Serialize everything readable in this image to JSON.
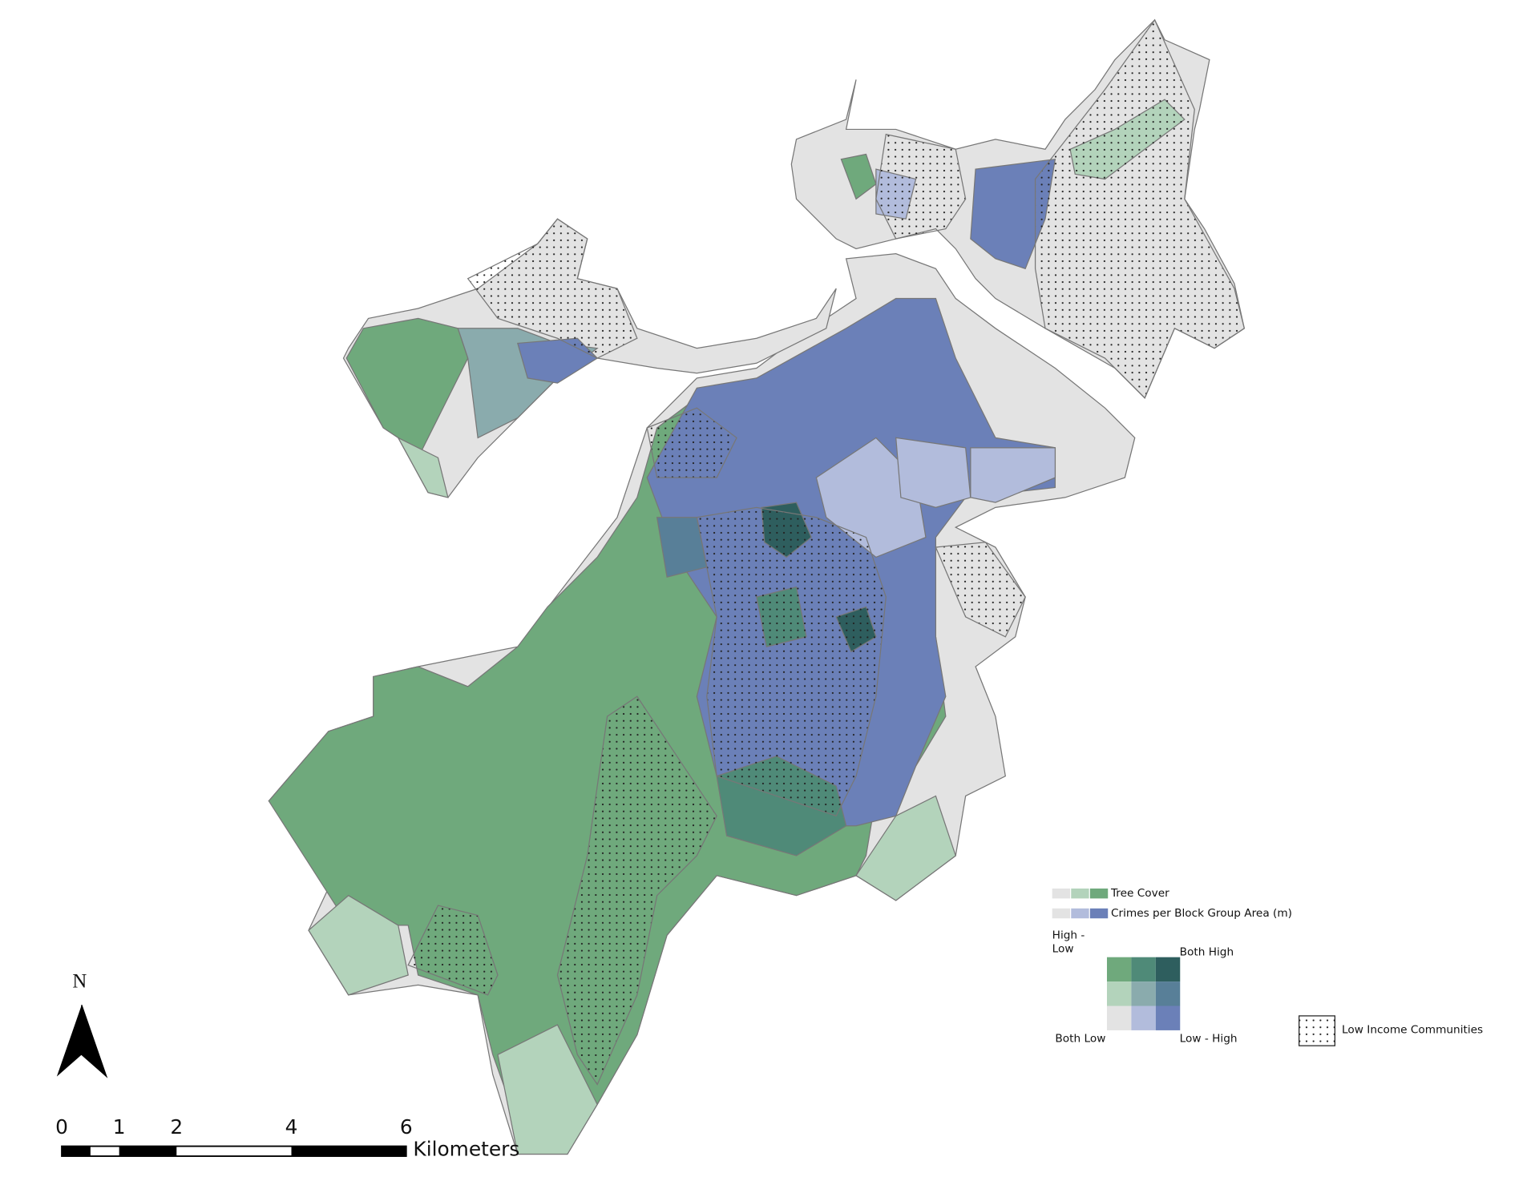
{
  "map": {
    "north_label": "N",
    "scale_bar": {
      "ticks": [
        0,
        1,
        2,
        4,
        6
      ],
      "unit": "Kilometers"
    },
    "legend": {
      "tree_cover": {
        "label": "Tree Cover",
        "colors": [
          "#e3e3e3",
          "#b3d3bb",
          "#6fa97c"
        ]
      },
      "crimes": {
        "label": "Crimes per Block Group Area (m)",
        "colors": [
          "#e3e3e3",
          "#b2bcdc",
          "#6b80b8"
        ]
      },
      "bivariate_colors": [
        [
          "#6fa97c",
          "#4f8a78",
          "#2e5e5e"
        ],
        [
          "#b3d3bb",
          "#8aabad",
          "#587f98"
        ],
        [
          "#e3e3e3",
          "#b2bcdc",
          "#6b80b8"
        ]
      ],
      "high_low": [
        "High -",
        "Low"
      ],
      "both_high": "Both High",
      "both_low": "Both Low",
      "low_high": "Low - High",
      "low_income": "Low Income Communities"
    }
  }
}
